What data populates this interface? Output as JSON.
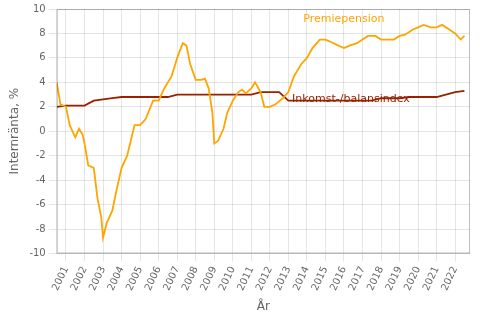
{
  "chart_data": {
    "type": "line",
    "xlabel": "År",
    "ylabel": "Internränta, %",
    "xlim": [
      2000.5,
      2022.8
    ],
    "xticks": [
      2001,
      2002,
      2003,
      2004,
      2005,
      2006,
      2007,
      2008,
      2009,
      2010,
      2011,
      2012,
      2013,
      2014,
      2015,
      2016,
      2017,
      2018,
      2019,
      2020,
      2021,
      2022
    ],
    "ylim": [
      -10,
      10
    ],
    "yticks": [
      -10,
      -8,
      -6,
      -4,
      -2,
      0,
      2,
      4,
      6,
      8,
      10
    ],
    "grid": true,
    "series": [
      {
        "color": "#FFA500",
        "x": [
          2000.5,
          2000.7,
          2001.0,
          2001.2,
          2001.5,
          2001.7,
          2001.9,
          2002.0,
          2002.2,
          2002.5,
          2002.7,
          2002.9,
          2003.0,
          2003.2,
          2003.5,
          2003.7,
          2004.0,
          2004.3,
          2004.7,
          2005.0,
          2005.3,
          2005.7,
          2006.0,
          2006.3,
          2006.7,
          2007.0,
          2007.3,
          2007.5,
          2007.7,
          2008.0,
          2008.3,
          2008.5,
          2008.7,
          2008.9,
          2009.0,
          2009.2,
          2009.5,
          2009.7,
          2010.0,
          2010.3,
          2010.5,
          2010.7,
          2011.0,
          2011.2,
          2011.5,
          2011.7,
          2011.9,
          2012.0,
          2012.3,
          2012.7,
          2013.0,
          2013.3,
          2013.7,
          2014.0,
          2014.3,
          2014.7,
          2015.0,
          2015.3,
          2015.7,
          2016.0,
          2016.3,
          2016.7,
          2017.0,
          2017.3,
          2017.7,
          2018.0,
          2018.3,
          2018.7,
          2019.0,
          2019.3,
          2019.7,
          2020.0,
          2020.3,
          2020.7,
          2021.0,
          2021.3,
          2021.7,
          2022.0,
          2022.3,
          2022.5
        ],
        "values": [
          4.0,
          2.2,
          2.0,
          0.5,
          -0.5,
          0.2,
          -0.3,
          -1.0,
          -2.8,
          -3.0,
          -5.5,
          -7.0,
          -8.7,
          -7.5,
          -6.5,
          -5.0,
          -3.0,
          -2.0,
          0.5,
          0.5,
          1.0,
          2.5,
          2.5,
          3.5,
          4.5,
          6.0,
          7.2,
          7.0,
          5.5,
          4.2,
          4.2,
          4.3,
          3.5,
          1.5,
          -1.0,
          -0.8,
          0.2,
          1.5,
          2.5,
          3.2,
          3.4,
          3.1,
          3.5,
          4.0,
          3.2,
          2.0,
          2.0,
          2.0,
          2.2,
          2.7,
          3.2,
          4.5,
          5.5,
          6.0,
          6.8,
          7.5,
          7.5,
          7.3,
          7.0,
          6.8,
          7.0,
          7.2,
          7.5,
          7.8,
          7.8,
          7.5,
          7.5,
          7.5,
          7.8,
          7.9,
          8.3,
          8.5,
          8.7,
          8.5,
          8.5,
          8.7,
          8.3,
          8.0,
          7.5,
          7.8
        ]
      },
      {
        "color": "#9B2000",
        "x": [
          2000.5,
          2001.0,
          2001.5,
          2002.0,
          2002.5,
          2003.0,
          2003.5,
          2004.0,
          2004.5,
          2005.0,
          2005.5,
          2006.0,
          2006.5,
          2007.0,
          2007.5,
          2008.0,
          2008.5,
          2009.0,
          2009.5,
          2010.0,
          2010.5,
          2011.0,
          2011.5,
          2012.0,
          2012.5,
          2013.0,
          2013.5,
          2014.0,
          2014.5,
          2015.0,
          2015.5,
          2016.0,
          2016.5,
          2017.0,
          2017.5,
          2018.0,
          2018.5,
          2019.0,
          2019.5,
          2020.0,
          2020.5,
          2021.0,
          2021.5,
          2022.0,
          2022.5
        ],
        "values": [
          2.0,
          2.1,
          2.1,
          2.1,
          2.5,
          2.6,
          2.7,
          2.8,
          2.8,
          2.8,
          2.8,
          2.8,
          2.8,
          3.0,
          3.0,
          3.0,
          3.0,
          3.0,
          3.0,
          3.0,
          3.0,
          3.0,
          3.2,
          3.2,
          3.2,
          2.5,
          2.5,
          2.5,
          2.5,
          2.5,
          2.5,
          2.5,
          2.5,
          2.5,
          2.5,
          2.7,
          2.7,
          2.7,
          2.8,
          2.8,
          2.8,
          2.8,
          3.0,
          3.2,
          3.3
        ]
      }
    ],
    "annotations": [
      {
        "text": "Premiepension",
        "x": 2013.8,
        "y": 8.7,
        "color": "#FFA500"
      },
      {
        "text": "Inkomst-/balansindex",
        "x": 2013.2,
        "y": 2.15,
        "color": "#9B2000"
      }
    ]
  }
}
